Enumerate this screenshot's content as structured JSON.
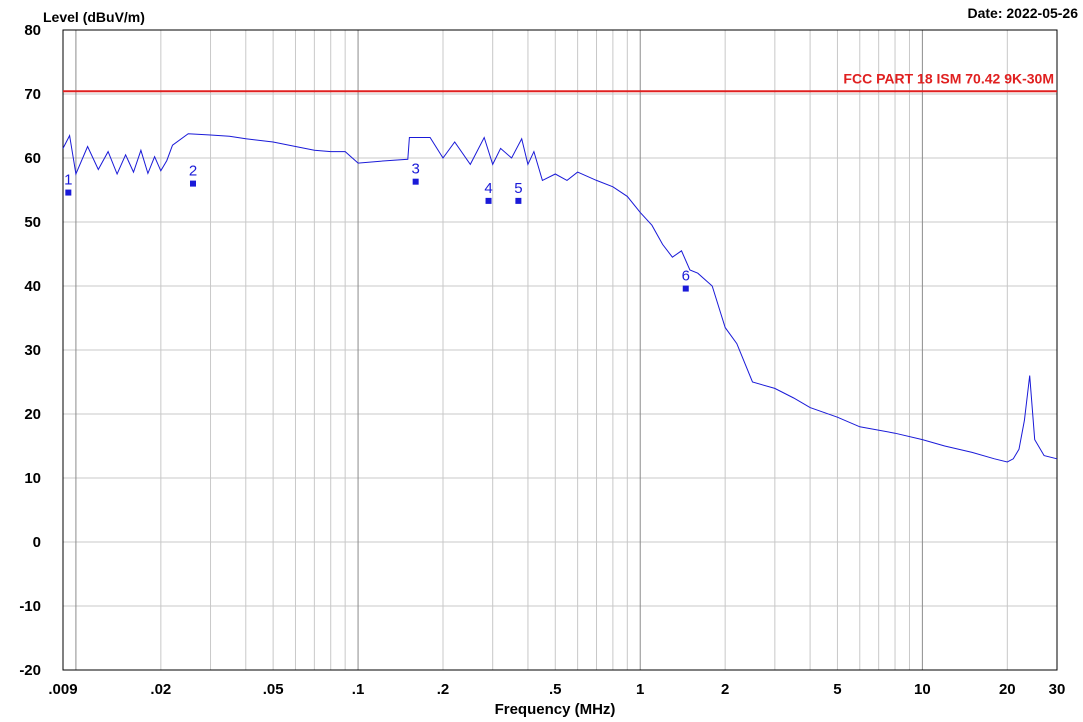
{
  "header": {
    "y_label": "Level (dBuV/m)",
    "date": "Date: 2022-05-26",
    "x_label": "Frequency (MHz)"
  },
  "chart_data": {
    "type": "line",
    "x_scale": "log",
    "xlim": [
      0.009,
      30
    ],
    "ylim": [
      -20,
      80
    ],
    "grid": true,
    "xlabel": "Frequency (MHz)",
    "ylabel": "Level (dBuV/m)",
    "x_ticks": [
      {
        "v": 0.009,
        "label": ".009"
      },
      {
        "v": 0.02,
        "label": ".02"
      },
      {
        "v": 0.05,
        "label": ".05"
      },
      {
        "v": 0.1,
        "label": ".1"
      },
      {
        "v": 0.2,
        "label": ".2"
      },
      {
        "v": 0.5,
        "label": ".5"
      },
      {
        "v": 1,
        "label": "1"
      },
      {
        "v": 2,
        "label": "2"
      },
      {
        "v": 5,
        "label": "5"
      },
      {
        "v": 10,
        "label": "10"
      },
      {
        "v": 20,
        "label": "20"
      },
      {
        "v": 30,
        "label": "30"
      }
    ],
    "y_ticks": [
      80,
      70,
      60,
      50,
      40,
      30,
      20,
      10,
      0,
      -10,
      -20
    ],
    "limit_line": {
      "label": "FCC PART 18 ISM 70.42 9K-30M",
      "value": 70.42,
      "color": "#e02020"
    },
    "series": [
      {
        "color": "#1a1ad8",
        "x": [
          0.009,
          0.0095,
          0.01,
          0.011,
          0.012,
          0.013,
          0.014,
          0.015,
          0.016,
          0.017,
          0.018,
          0.019,
          0.02,
          0.021,
          0.022,
          0.025,
          0.03,
          0.035,
          0.04,
          0.05,
          0.06,
          0.07,
          0.08,
          0.09,
          0.1,
          0.12,
          0.15,
          0.152,
          0.18,
          0.2,
          0.22,
          0.25,
          0.28,
          0.3,
          0.32,
          0.35,
          0.38,
          0.4,
          0.42,
          0.45,
          0.5,
          0.55,
          0.6,
          0.7,
          0.8,
          0.9,
          1.0,
          1.1,
          1.2,
          1.3,
          1.4,
          1.5,
          1.6,
          1.8,
          2.0,
          2.2,
          2.5,
          3.0,
          3.5,
          4.0,
          5.0,
          6.0,
          8.0,
          10.0,
          12.0,
          15.0,
          18.0,
          20.0,
          21.0,
          22.0,
          23.0,
          24.0,
          25.0,
          27.0,
          30.0
        ],
        "y": [
          61.5,
          63.5,
          57.5,
          61.8,
          58.2,
          61.0,
          57.5,
          60.5,
          57.8,
          61.2,
          57.6,
          60.2,
          58.0,
          59.6,
          62.0,
          63.8,
          63.6,
          63.4,
          63.0,
          62.5,
          61.8,
          61.2,
          61.0,
          61.0,
          59.2,
          59.5,
          59.8,
          63.2,
          63.2,
          60.0,
          62.5,
          59.0,
          63.2,
          59.0,
          61.5,
          60.0,
          63.0,
          59.0,
          61.0,
          56.5,
          57.5,
          56.5,
          57.8,
          56.5,
          55.5,
          54.0,
          51.5,
          49.5,
          46.5,
          44.5,
          45.5,
          42.5,
          42.0,
          40.0,
          33.5,
          31.0,
          25.0,
          24.0,
          22.5,
          21.0,
          19.5,
          18.0,
          17.0,
          16.0,
          15.0,
          14.0,
          13.0,
          12.5,
          13.0,
          14.5,
          19.0,
          26.0,
          16.0,
          13.5,
          13.0
        ]
      }
    ],
    "markers": [
      {
        "label": "1",
        "x": 0.0094,
        "y": 54.6
      },
      {
        "label": "2",
        "x": 0.026,
        "y": 56.0
      },
      {
        "label": "3",
        "x": 0.16,
        "y": 56.3
      },
      {
        "label": "4",
        "x": 0.29,
        "y": 53.3
      },
      {
        "label": "5",
        "x": 0.37,
        "y": 53.3
      },
      {
        "label": "6",
        "x": 1.45,
        "y": 39.6
      }
    ]
  }
}
